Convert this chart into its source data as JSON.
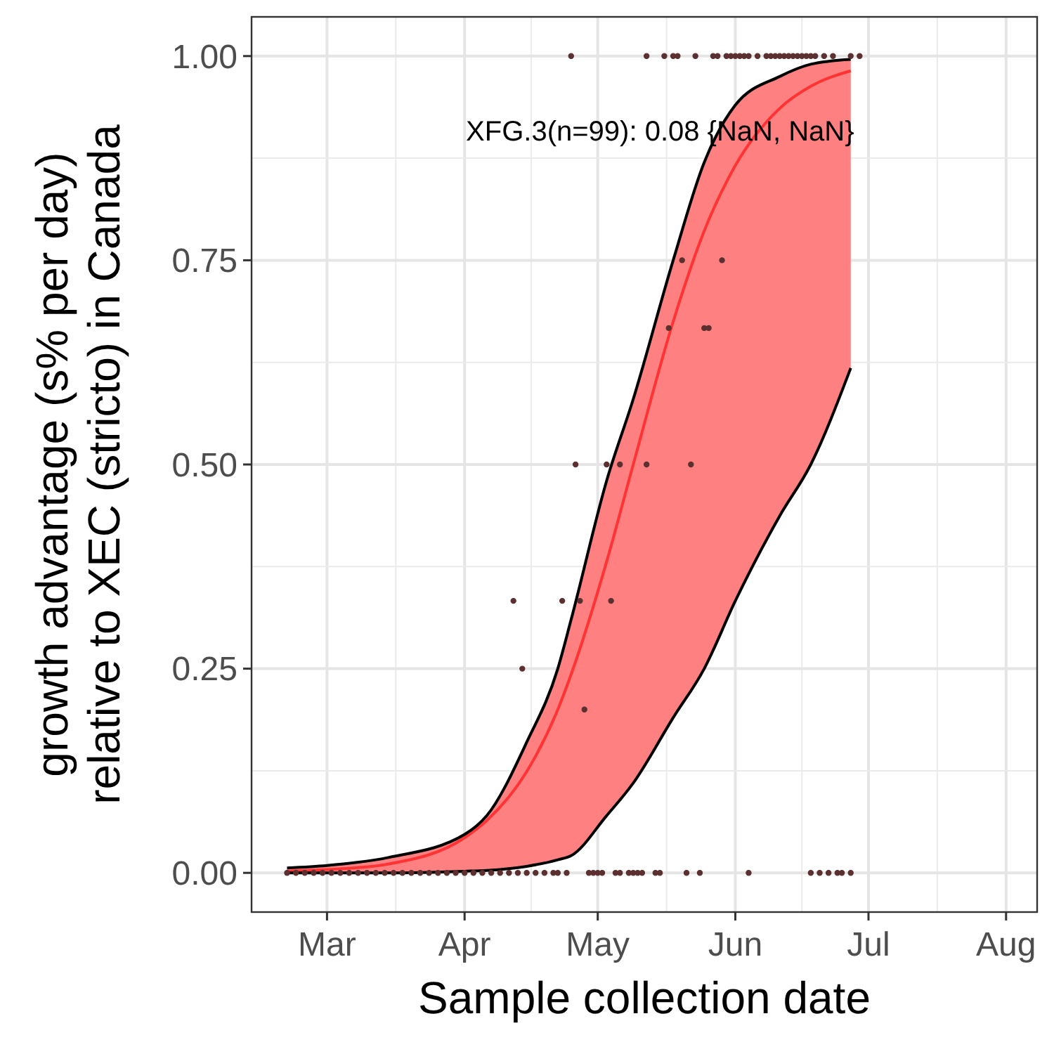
{
  "chart_data": {
    "type": "line",
    "xlabel": "Sample collection date",
    "ylabel": "growth advantage (s% per day)\nrelative to XEC (stricto) in Canada",
    "annotations": [
      "XFG.3(n=99): 0.08 {NaN, NaN}"
    ],
    "xlim": [
      "--02-12",
      "--08-08"
    ],
    "xticks": [
      {
        "value": "--03-01",
        "label": "Mar"
      },
      {
        "value": "--04-01",
        "label": "Apr"
      },
      {
        "value": "--05-01",
        "label": "May"
      },
      {
        "value": "--06-01",
        "label": "Jun"
      },
      {
        "value": "--07-01",
        "label": "Jul"
      },
      {
        "value": "--08-01",
        "label": "Aug"
      }
    ],
    "ylim": [
      -0.048,
      1.048
    ],
    "yticks": [
      {
        "value": 0,
        "label": "0.00"
      },
      {
        "value": 0.25,
        "label": "0.25"
      },
      {
        "value": 0.5,
        "label": "0.50"
      },
      {
        "value": 0.75,
        "label": "0.75"
      },
      {
        "value": 1,
        "label": "1.00"
      }
    ],
    "grid": true,
    "series": [
      {
        "color": "#ff3333",
        "x": [
          "--02-20",
          "--03-01",
          "--03-15",
          "--04-01",
          "--04-06",
          "--04-15",
          "--04-22",
          "--04-25",
          "--05-03",
          "--05-09",
          "--05-18",
          "--05-25",
          "--06-01",
          "--06-11",
          "--06-18",
          "--06-27"
        ],
        "values": [
          0.002,
          0.004,
          0.011,
          0.043,
          0.064,
          0.124,
          0.2,
          0.243,
          0.381,
          0.5,
          0.675,
          0.786,
          0.866,
          0.936,
          0.963,
          0.982
        ],
        "upper": [
          0.006,
          0.009,
          0.019,
          0.047,
          0.07,
          0.16,
          0.25,
          0.31,
          0.48,
          0.58,
          0.75,
          0.87,
          0.94,
          0.975,
          0.99,
          0.996
        ],
        "lower": [
          0,
          0,
          0,
          0.002,
          0.003,
          0.008,
          0.016,
          0.021,
          0.07,
          0.11,
          0.19,
          0.25,
          0.333,
          0.437,
          0.5,
          0.618
        ]
      },
      {
        "color": "#000000",
        "x": [
          "--02-20",
          "--03-01",
          "--03-15",
          "--04-01",
          "--04-06",
          "--04-15",
          "--04-22",
          "--04-25",
          "--05-03",
          "--05-09",
          "--05-18",
          "--05-25",
          "--06-01",
          "--06-11",
          "--06-18",
          "--06-27"
        ],
        "values": [
          0.006,
          0.009,
          0.019,
          0.047,
          0.07,
          0.16,
          0.25,
          0.31,
          0.48,
          0.58,
          0.75,
          0.87,
          0.94,
          0.975,
          0.99,
          0.996
        ]
      },
      {
        "color": "#000000",
        "x": [
          "--02-20",
          "--03-01",
          "--03-15",
          "--04-01",
          "--04-06",
          "--04-15",
          "--04-22",
          "--04-25",
          "--05-03",
          "--05-09",
          "--05-18",
          "--05-25",
          "--06-01",
          "--06-11",
          "--06-18",
          "--06-27"
        ],
        "values": [
          0,
          0,
          0,
          0.002,
          0.003,
          0.008,
          0.016,
          0.021,
          0.07,
          0.11,
          0.19,
          0.25,
          0.333,
          0.437,
          0.5,
          0.618
        ]
      },
      {
        "type": "scatter",
        "color": "#5c3030",
        "marker": "circle",
        "x": [
          "--04-25",
          "--05-12",
          "--05-16",
          "--05-18",
          "--05-19",
          "--05-23",
          "--05-27",
          "--05-28",
          "--05-30",
          "--05-31",
          "--06-01",
          "--06-02",
          "--06-03",
          "--06-04",
          "--06-06",
          "--06-08",
          "--06-09",
          "--06-10",
          "--06-11",
          "--06-12",
          "--06-13",
          "--06-14",
          "--06-15",
          "--06-16",
          "--06-17",
          "--06-18",
          "--06-19",
          "--06-21",
          "--06-23",
          "--06-27",
          "--06-29",
          "--05-20",
          "--05-29",
          "--05-17",
          "--05-25",
          "--05-26",
          "--04-26",
          "--05-03",
          "--05-06",
          "--05-12",
          "--05-22",
          "--04-12",
          "--04-23",
          "--04-27",
          "--05-04",
          "--04-14",
          "--04-28",
          "--02-20",
          "--02-22",
          "--02-24",
          "--02-26",
          "--02-28",
          "--03-02",
          "--03-04",
          "--03-06",
          "--03-08",
          "--03-10",
          "--03-12",
          "--03-14",
          "--03-16",
          "--03-18",
          "--03-20",
          "--03-22",
          "--03-24",
          "--03-26",
          "--03-28",
          "--03-30",
          "--04-01",
          "--04-03",
          "--04-05",
          "--04-07",
          "--04-09",
          "--04-11",
          "--04-13",
          "--04-15",
          "--04-17",
          "--04-19",
          "--04-21",
          "--04-22",
          "--04-24",
          "--04-29",
          "--04-30",
          "--05-01",
          "--05-02",
          "--05-05",
          "--05-06",
          "--05-08",
          "--05-09",
          "--05-10",
          "--05-11",
          "--05-14",
          "--05-15",
          "--05-21",
          "--05-24",
          "--06-04",
          "--06-18",
          "--06-20",
          "--06-22",
          "--06-24",
          "--06-25",
          "--06-27"
        ],
        "values": [
          1,
          1,
          1,
          1,
          1,
          1,
          1,
          1,
          1,
          1,
          1,
          1,
          1,
          1,
          1,
          1,
          1,
          1,
          1,
          1,
          1,
          1,
          1,
          1,
          1,
          1,
          1,
          1,
          1,
          1,
          1,
          0.75,
          0.75,
          0.667,
          0.667,
          0.667,
          0.5,
          0.5,
          0.5,
          0.5,
          0.5,
          0.333,
          0.333,
          0.333,
          0.333,
          0.25,
          0.2,
          0,
          0,
          0,
          0,
          0,
          0,
          0,
          0,
          0,
          0,
          0,
          0,
          0,
          0,
          0,
          0,
          0,
          0,
          0,
          0,
          0,
          0,
          0,
          0,
          0,
          0,
          0,
          0,
          0,
          0,
          0,
          0,
          0,
          0,
          0,
          0,
          0,
          0,
          0,
          0,
          0,
          0,
          0,
          0,
          0,
          0,
          0,
          0,
          0,
          0,
          0,
          0,
          0,
          0
        ]
      }
    ]
  }
}
